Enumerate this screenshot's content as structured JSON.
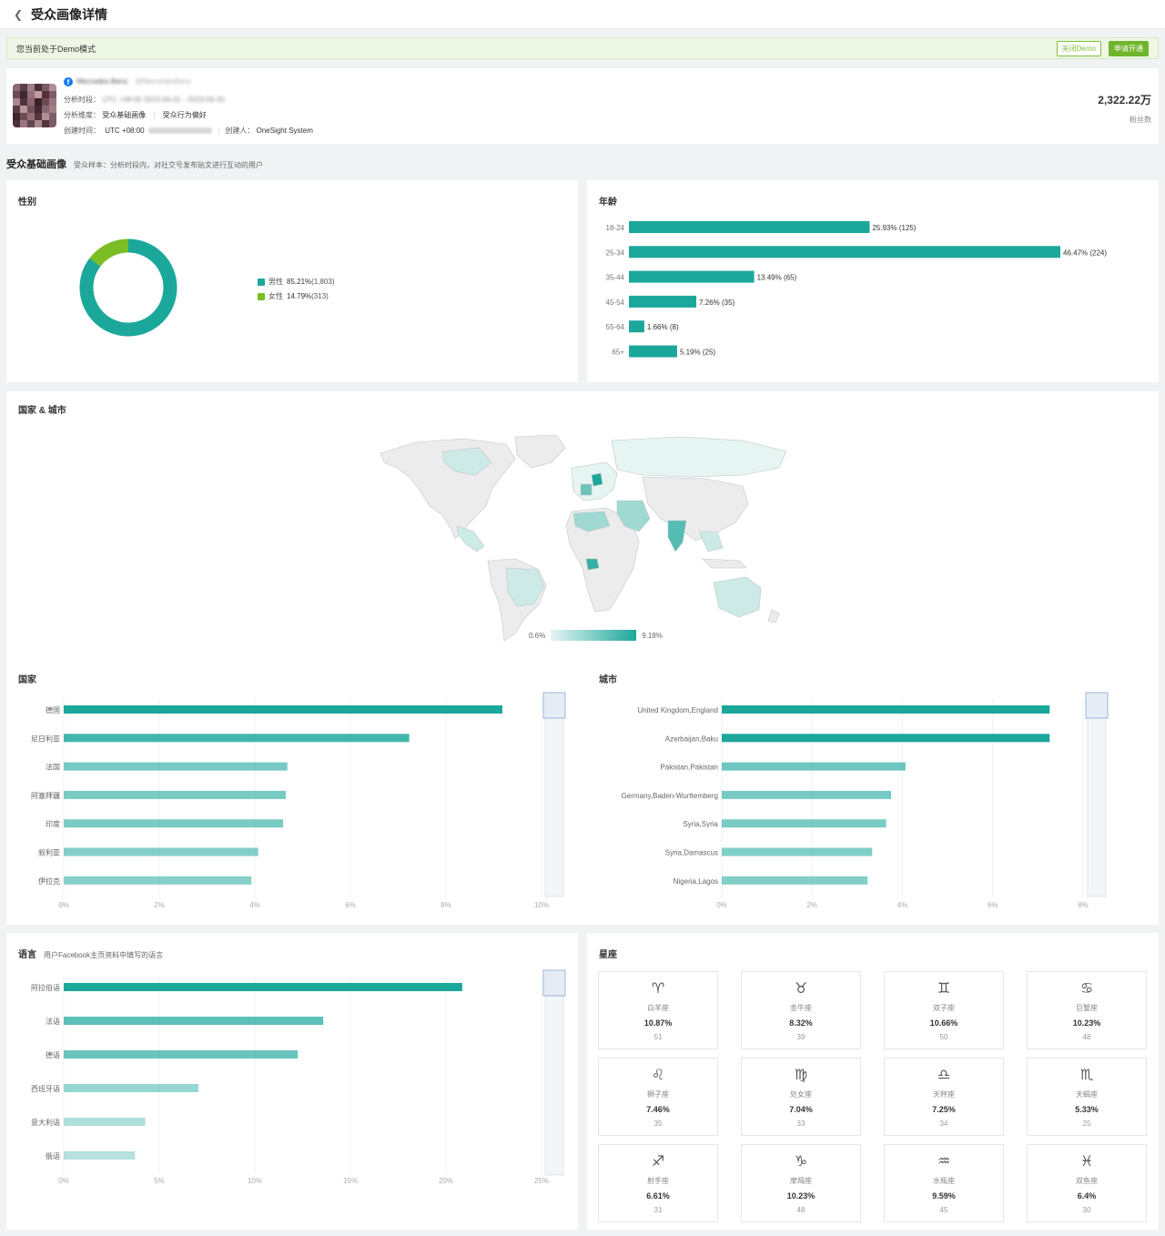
{
  "header": {
    "title": "受众画像详情"
  },
  "demo": {
    "text": "您当前处于Demo模式",
    "close_label": "关闭Demo",
    "apply_label": "申请开通"
  },
  "profile": {
    "name": "Mercedes-Benz",
    "handle": "@MercedesBenz",
    "period_label": "分析时段：",
    "period_value": "UTC +08:00 2023-06-01 - 2023-06-30",
    "dims_label": "分析维度：",
    "dims": [
      "受众基础画像",
      "受众行为偏好"
    ],
    "created_label": "创建时间：",
    "created_value": "UTC +08:00",
    "creator_label": "创建人：",
    "creator_value": "OneSight System",
    "fans_value": "2,322.22万",
    "fans_label": "粉丝数",
    "avatar_colors": [
      "#8a6b72",
      "#5c3e48",
      "#a0808a",
      "#4a2f38",
      "#7a5a63",
      "#b08c94",
      "#6b4c56",
      "#3e2630",
      "#946f79",
      "#c09aa2",
      "#552f3b",
      "#7d5c66",
      "#a98891",
      "#4f3440",
      "#8c6770",
      "#3a2028",
      "#6a4a52",
      "#9b7781",
      "#5e3a45",
      "#b9959d",
      "#72525c",
      "#452a33",
      "#88666f",
      "#a37f88",
      "#3f252e",
      "#6d4b55",
      "#927079",
      "#58363f",
      "#b18f97",
      "#7e5d66",
      "#4c303a",
      "#9a7780",
      "#664651",
      "#ab8890",
      "#52343d",
      "#7b5a63"
    ]
  },
  "section": {
    "title": "受众基础画像",
    "subtitle": "受众样本：分析时段内，对社交号发布贴文进行互动的用户"
  },
  "gender": {
    "title": "性别",
    "items": [
      {
        "label": "男性",
        "pct": "85.21%",
        "count": "(1,803)",
        "color": "#1ca79b",
        "value": 85.21
      },
      {
        "label": "女性",
        "pct": "14.79%",
        "count": "(313)",
        "color": "#7bbd24",
        "value": 14.79
      }
    ]
  },
  "age": {
    "title": "年龄",
    "max": 46.47,
    "items": [
      {
        "label": "18-24",
        "value": 25.93,
        "text": "25.93% (125)"
      },
      {
        "label": "25-34",
        "value": 46.47,
        "text": "46.47% (224)"
      },
      {
        "label": "35-44",
        "value": 13.49,
        "text": "13.49% (65)"
      },
      {
        "label": "45-54",
        "value": 7.26,
        "text": "7.26% (35)"
      },
      {
        "label": "55-64",
        "value": 1.66,
        "text": "1.66% (8)"
      },
      {
        "label": "65+",
        "value": 5.19,
        "text": "5.19% (25)"
      }
    ],
    "color": "#1ca79b"
  },
  "map": {
    "title": "国家 & 城市",
    "legend_min": "0.6%",
    "legend_max": "9.18%"
  },
  "country": {
    "title": "国家",
    "max": 10,
    "ticks": [
      "0%",
      "2%",
      "4%",
      "6%",
      "8%",
      "10%"
    ],
    "items": [
      {
        "label": "德国",
        "value": 9.18
      },
      {
        "label": "尼日利亚",
        "value": 7.23
      },
      {
        "label": "法国",
        "value": 4.68
      },
      {
        "label": "阿塞拜疆",
        "value": 4.65
      },
      {
        "label": "印度",
        "value": 4.59
      },
      {
        "label": "叙利亚",
        "value": 4.07
      },
      {
        "label": "伊拉克",
        "value": 3.93
      }
    ]
  },
  "city": {
    "title": "城市",
    "max": 8,
    "ticks": [
      "0%",
      "2%",
      "4%",
      "6%",
      "8%"
    ],
    "items": [
      {
        "label": "United Kingdom,England",
        "value": 7.26
      },
      {
        "label": "Azerbaijan,Baku",
        "value": 7.26
      },
      {
        "label": "Pakistan,Pakistan",
        "value": 4.07
      },
      {
        "label": "Germany,Baden-Wurttemberg",
        "value": 3.75
      },
      {
        "label": "Syria,Syria",
        "value": 3.64
      },
      {
        "label": "Syria,Damascus",
        "value": 3.33
      },
      {
        "label": "Nigeria,Lagos",
        "value": 3.23
      }
    ]
  },
  "language": {
    "title": "语言",
    "subtitle": "用户Facebook主页资料中填写的语言",
    "max": 25,
    "ticks": [
      "0%",
      "5%",
      "10%",
      "15%",
      "20%",
      "25%"
    ],
    "items": [
      {
        "label": "阿拉伯语",
        "value": 20.85
      },
      {
        "label": "法语",
        "value": 13.58
      },
      {
        "label": "德语",
        "value": 12.25
      },
      {
        "label": "西班牙语",
        "value": 7.05
      },
      {
        "label": "意大利语",
        "value": 4.27
      },
      {
        "label": "俄语",
        "value": 3.73
      }
    ]
  },
  "zodiac": {
    "title": "星座",
    "items": [
      {
        "icon": "♈",
        "icon_name": "aries-icon",
        "name": "白羊座",
        "pct": "10.87%",
        "count": "51"
      },
      {
        "icon": "♉",
        "icon_name": "taurus-icon",
        "name": "金牛座",
        "pct": "8.32%",
        "count": "39"
      },
      {
        "icon": "♊",
        "icon_name": "gemini-icon",
        "name": "双子座",
        "pct": "10.66%",
        "count": "50"
      },
      {
        "icon": "♋",
        "icon_name": "cancer-icon",
        "name": "巨蟹座",
        "pct": "10.23%",
        "count": "48"
      },
      {
        "icon": "♌",
        "icon_name": "leo-icon",
        "name": "狮子座",
        "pct": "7.46%",
        "count": "35"
      },
      {
        "icon": "♍",
        "icon_name": "virgo-icon",
        "name": "处女座",
        "pct": "7.04%",
        "count": "33"
      },
      {
        "icon": "♎",
        "icon_name": "libra-icon",
        "name": "天秤座",
        "pct": "7.25%",
        "count": "34"
      },
      {
        "icon": "♏",
        "icon_name": "scorpio-icon",
        "name": "天蝎座",
        "pct": "5.33%",
        "count": "25"
      },
      {
        "icon": "♐",
        "icon_name": "sagittarius-icon",
        "name": "射手座",
        "pct": "6.61%",
        "count": "31"
      },
      {
        "icon": "♑",
        "icon_name": "capricorn-icon",
        "name": "摩羯座",
        "pct": "10.23%",
        "count": "48"
      },
      {
        "icon": "♒",
        "icon_name": "aquarius-icon",
        "name": "水瓶座",
        "pct": "9.59%",
        "count": "45"
      },
      {
        "icon": "♓",
        "icon_name": "pisces-icon",
        "name": "双鱼座",
        "pct": "6.4%",
        "count": "30"
      }
    ]
  }
}
